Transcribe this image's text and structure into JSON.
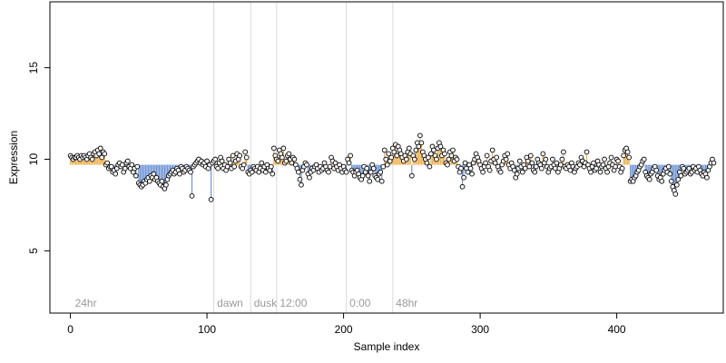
{
  "chart_data": {
    "type": "scatter",
    "title": "",
    "xlabel": "Sample index",
    "ylabel": "Expression",
    "xlim": [
      -15,
      478
    ],
    "ylim": [
      1.6,
      18.6
    ],
    "baseline": 9.7,
    "xticks": [
      0,
      100,
      200,
      300,
      400
    ],
    "yticks": [
      5,
      10,
      15
    ],
    "x_tick_labels": [
      "0",
      "100",
      "200",
      "300",
      "400"
    ],
    "y_tick_labels": [
      "5",
      "10",
      "15"
    ],
    "colors": {
      "above_segment": "#f0b04c",
      "below_segment": "#6f96d8",
      "point_fill": "#ffffff",
      "point_stroke": "#000000",
      "vertical_line": "#d9d9d9",
      "axis": "#000000"
    },
    "vertical_lines": [
      {
        "x": 105,
        "label": ""
      },
      {
        "x": 132,
        "label": ""
      },
      {
        "x": 151,
        "label": ""
      },
      {
        "x": 202,
        "label": ""
      },
      {
        "x": 236,
        "label": ""
      }
    ],
    "annotations": [
      {
        "x": 2,
        "text": "24hr"
      },
      {
        "x": 106,
        "text": "dawn"
      },
      {
        "x": 133,
        "text": "dusk"
      },
      {
        "x": 152,
        "text": "12:00"
      },
      {
        "x": 203,
        "text": "0:00"
      },
      {
        "x": 237,
        "text": "48hr"
      }
    ],
    "series_values": [
      10.2,
      10.1,
      10.0,
      10.1,
      10.1,
      10.2,
      10.1,
      10.0,
      10.2,
      10.1,
      10.2,
      10.1,
      10.0,
      10.2,
      10.3,
      10.1,
      10.0,
      10.3,
      10.4,
      10.2,
      10.5,
      10.3,
      10.6,
      10.1,
      10.4,
      10.3,
      9.7,
      9.8,
      9.5,
      9.6,
      9.6,
      9.3,
      9.4,
      9.2,
      9.5,
      9.7,
      9.8,
      9.6,
      9.7,
      9.3,
      9.5,
      9.8,
      9.9,
      9.6,
      9.5,
      9.7,
      9.3,
      9.5,
      9.1,
      9.6,
      8.7,
      8.6,
      8.5,
      8.6,
      8.8,
      8.7,
      8.9,
      9.0,
      8.8,
      9.1,
      9.0,
      9.2,
      8.9,
      9.0,
      8.8,
      8.7,
      8.6,
      8.8,
      8.5,
      8.4,
      8.6,
      8.9,
      9.1,
      9.2,
      9.3,
      9.4,
      9.2,
      9.3,
      9.5,
      9.4,
      9.2,
      9.6,
      9.5,
      9.3,
      9.4,
      9.6,
      9.5,
      9.4,
      9.3,
      8.0,
      9.6,
      9.7,
      9.8,
      9.9,
      10.0,
      9.8,
      9.9,
      9.7,
      9.8,
      9.6,
      9.9,
      9.5,
      9.7,
      7.8,
      9.8,
      9.9,
      10.0,
      9.6,
      9.5,
      9.8,
      10.1,
      9.9,
      9.5,
      9.7,
      9.4,
      9.6,
      10.0,
      9.8,
      9.5,
      10.2,
      9.6,
      9.9,
      10.3,
      10.0,
      10.2,
      9.6,
      9.5,
      9.7,
      10.4,
      10.1,
      9.3,
      9.2,
      9.4,
      9.3,
      9.6,
      9.5,
      9.4,
      9.6,
      9.3,
      9.5,
      9.8,
      9.4,
      9.6,
      9.3,
      9.7,
      9.5,
      9.4,
      9.6,
      9.2,
      10.6,
      10.2,
      10.0,
      9.9,
      10.5,
      10.3,
      10.1,
      10.6,
      9.8,
      9.9,
      10.2,
      10.3,
      10.0,
      9.8,
      10.1,
      10.0,
      9.7,
      9.5,
      9.3,
      8.9,
      8.6,
      9.4,
      9.6,
      9.8,
      9.7,
      9.2,
      9.0,
      9.3,
      9.5,
      9.4,
      9.6,
      9.7,
      9.5,
      9.3,
      9.6,
      9.4,
      9.5,
      9.8,
      9.6,
      9.4,
      9.3,
      9.6,
      10.1,
      9.9,
      9.5,
      9.8,
      9.6,
      9.4,
      9.7,
      9.5,
      9.3,
      9.6,
      9.4,
      9.3,
      10.0,
      9.8,
      10.2,
      9.4,
      9.3,
      9.1,
      9.3,
      9.4,
      9.2,
      9.0,
      8.9,
      9.1,
      9.6,
      9.3,
      9.5,
      9.1,
      8.8,
      9.3,
      9.7,
      9.5,
      9.1,
      9.0,
      8.9,
      9.2,
      9.3,
      8.8,
      9.6,
      10.5,
      10.0,
      9.7,
      10.3,
      9.9,
      10.1,
      10.6,
      10.4,
      10.8,
      10.2,
      10.7,
      10.5,
      10.3,
      10.1,
      9.9,
      10.2,
      10.0,
      10.4,
      10.6,
      10.3,
      9.1,
      10.2,
      10.0,
      10.5,
      10.9,
      10.7,
      11.3,
      10.9,
      10.4,
      10.2,
      10.0,
      9.8,
      10.1,
      9.6,
      10.3,
      10.7,
      10.5,
      10.2,
      10.0,
      10.6,
      10.9,
      10.7,
      10.2,
      10.5,
      10.3,
      9.8,
      9.7,
      10.0,
      10.4,
      10.2,
      10.5,
      9.9,
      10.1,
      10.0,
      9.6,
      9.3,
      9.5,
      8.5,
      9.0,
      9.8,
      9.5,
      9.3,
      9.7,
      9.5,
      9.2,
      9.8,
      10.0,
      10.3,
      10.1,
      9.9,
      9.7,
      9.5,
      9.3,
      9.6,
      9.8,
      10.2,
      9.6,
      9.4,
      9.9,
      10.5,
      10.0,
      9.8,
      10.1,
      9.6,
      9.4,
      9.3,
      9.7,
      9.9,
      10.2,
      10.0,
      10.3,
      9.7,
      9.5,
      9.8,
      9.6,
      9.4,
      9.0,
      9.2,
      9.5,
      9.9,
      9.6,
      9.3,
      9.7,
      9.5,
      10.1,
      9.9,
      9.6,
      10.2,
      9.8,
      9.4,
      9.3,
      9.6,
      10.0,
      9.8,
      9.7,
      9.5,
      10.3,
      9.8,
      10.0,
      9.6,
      9.3,
      9.5,
      9.6,
      10.0,
      9.7,
      9.5,
      9.8,
      9.3,
      9.5,
      9.7,
      10.0,
      10.4,
      9.6,
      9.5,
      9.7,
      9.6,
      9.4,
      9.8,
      9.6,
      9.3,
      9.5,
      9.6,
      9.8,
      9.7,
      10.1,
      9.9,
      9.6,
      9.8,
      10.4,
      9.7,
      9.5,
      9.3,
      9.6,
      9.8,
      9.4,
      9.5,
      9.9,
      9.7,
      9.3,
      9.6,
      9.7,
      10.0,
      9.5,
      9.3,
      9.6,
      9.8,
      10.1,
      9.7,
      9.4,
      9.6,
      10.0,
      9.9,
      9.6,
      9.3,
      9.5,
      10.2,
      10.5,
      10.6,
      10.4,
      10.1,
      8.8,
      8.9,
      8.8,
      9.0,
      9.1,
      9.3,
      9.4,
      9.6,
      9.7,
      9.9,
      10.0,
      9.3,
      9.1,
      9.0,
      8.9,
      9.2,
      9.3,
      9.5,
      9.6,
      9.4,
      9.1,
      8.9,
      9.0,
      8.8,
      9.2,
      9.4,
      9.5,
      9.3,
      9.6,
      9.2,
      8.8,
      8.5,
      8.3,
      8.1,
      8.6,
      8.9,
      9.3,
      9.1,
      9.6,
      9.5,
      9.2,
      9.3,
      9.4,
      9.5,
      9.2,
      9.3,
      9.6,
      9.4,
      9.5,
      9.3,
      9.6,
      9.4,
      9.2,
      9.1,
      9.3,
      9.2,
      9.0,
      9.4,
      9.6,
      9.8,
      10.0,
      9.8
    ]
  }
}
